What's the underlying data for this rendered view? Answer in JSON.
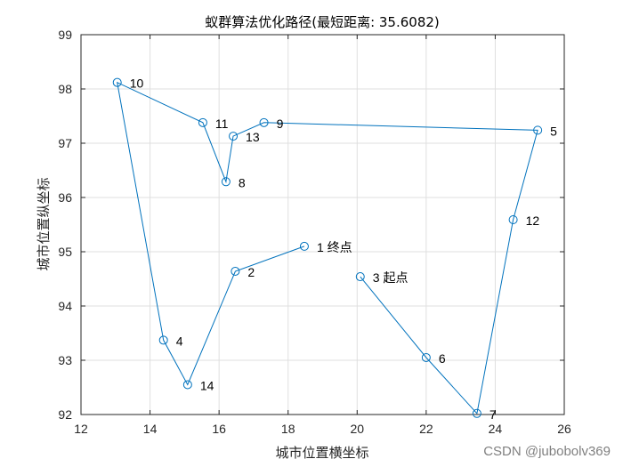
{
  "chart_data": {
    "type": "line",
    "title": "蚁群算法优化路径(最短距离: 35.6082)",
    "xlabel": "城市位置横坐标",
    "ylabel": "城市位置纵坐标",
    "xlim": [
      12,
      26
    ],
    "ylim": [
      92,
      99
    ],
    "xticks": [
      "12",
      "14",
      "16",
      "18",
      "20",
      "22",
      "24",
      "26"
    ],
    "yticks": [
      "92",
      "93",
      "94",
      "95",
      "96",
      "97",
      "98",
      "99"
    ],
    "grid": true,
    "marker": "circle",
    "line_color": "#0072BD",
    "cities": [
      {
        "label": "1  终点",
        "x": 18.47,
        "y": 95.1
      },
      {
        "label": "2",
        "x": 16.47,
        "y": 94.64
      },
      {
        "label": "3  起点",
        "x": 20.09,
        "y": 94.54
      },
      {
        "label": "4",
        "x": 14.39,
        "y": 93.37
      },
      {
        "label": "5",
        "x": 25.23,
        "y": 97.24
      },
      {
        "label": "6",
        "x": 22.0,
        "y": 93.05
      },
      {
        "label": "7",
        "x": 23.47,
        "y": 92.02
      },
      {
        "label": "8",
        "x": 16.2,
        "y": 96.29
      },
      {
        "label": "9",
        "x": 17.3,
        "y": 97.38
      },
      {
        "label": "10",
        "x": 13.05,
        "y": 98.12
      },
      {
        "label": "11",
        "x": 15.53,
        "y": 97.38
      },
      {
        "label": "12",
        "x": 24.52,
        "y": 95.59
      },
      {
        "label": "13",
        "x": 16.41,
        "y": 97.13
      },
      {
        "label": "14",
        "x": 15.09,
        "y": 92.55
      }
    ],
    "route": [
      3,
      6,
      7,
      12,
      5,
      9,
      13,
      8,
      11,
      10,
      4,
      14,
      2,
      1
    ]
  },
  "watermark": "CSDN @jubobolv369"
}
